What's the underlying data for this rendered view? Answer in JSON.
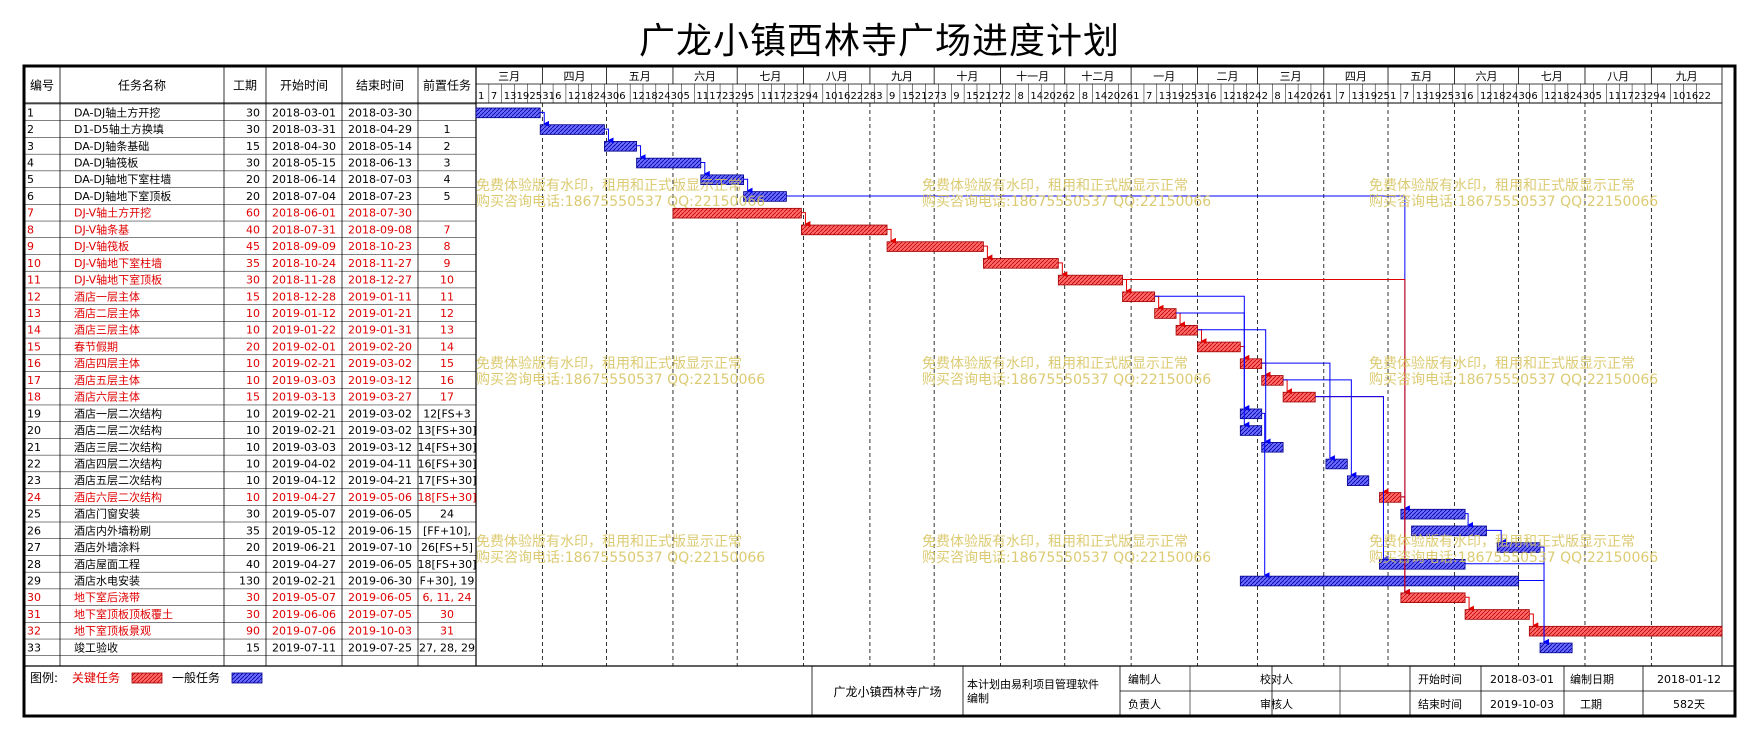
{
  "title": "广龙小镇西林寺广场进度计划",
  "headers": {
    "id": "编号",
    "name": "任务名称",
    "dur": "工期",
    "start": "开始时间",
    "end": "结束时间",
    "pred": "前置任务"
  },
  "colors": {
    "critical": "#ff4d4d",
    "general": "#4d4dff",
    "critical_text": "#e00000",
    "general_link": "#0000ff",
    "critical_link": "#e00000",
    "watermark": "#d6c25a"
  },
  "months": [
    "三月",
    "四月",
    "五月",
    "六月",
    "七月",
    "八月",
    "九月",
    "十月",
    "十一月",
    "十二月",
    "一月",
    "二月",
    "三月",
    "四月",
    "五月",
    "六月",
    "七月",
    "八月",
    "九月"
  ],
  "chart_data": {
    "type": "gantt",
    "title": "广龙小镇西林寺广场进度计划",
    "timeline_start": "2018-03-01",
    "timeline_end": "2019-10-03",
    "tasks": [
      {
        "id": "1",
        "name": "DA-DJ轴土方开挖",
        "dur": "30",
        "start": "2018-03-01",
        "end": "2018-03-30",
        "pred": "",
        "critical": false,
        "s": "2018-03-01",
        "e": "2018-03-30"
      },
      {
        "id": "2",
        "name": "D1-D5轴土方换填",
        "dur": "30",
        "start": "2018-03-31",
        "end": "2018-04-29",
        "pred": "1",
        "critical": false,
        "s": "2018-03-31",
        "e": "2018-04-29"
      },
      {
        "id": "3",
        "name": "DA-DJ轴条基础",
        "dur": "15",
        "start": "2018-04-30",
        "end": "2018-05-14",
        "pred": "2",
        "critical": false,
        "s": "2018-04-30",
        "e": "2018-05-14"
      },
      {
        "id": "4",
        "name": "DA-DJ轴筏板",
        "dur": "30",
        "start": "2018-05-15",
        "end": "2018-06-13",
        "pred": "3",
        "critical": false,
        "s": "2018-05-15",
        "e": "2018-06-13"
      },
      {
        "id": "5",
        "name": "DA-DJ轴地下室柱墙",
        "dur": "20",
        "start": "2018-06-14",
        "end": "2018-07-03",
        "pred": "4",
        "critical": false,
        "s": "2018-06-14",
        "e": "2018-07-03"
      },
      {
        "id": "6",
        "name": "DA-DJ轴地下室顶板",
        "dur": "20",
        "start": "2018-07-04",
        "end": "2018-07-23",
        "pred": "5",
        "critical": false,
        "s": "2018-07-04",
        "e": "2018-07-23"
      },
      {
        "id": "7",
        "name": "DJ-V轴土方开挖",
        "dur": "60",
        "start": "2018-06-01",
        "end": "2018-07-30",
        "pred": "",
        "critical": true,
        "s": "2018-06-01",
        "e": "2018-07-30"
      },
      {
        "id": "8",
        "name": "DJ-V轴条基",
        "dur": "40",
        "start": "2018-07-31",
        "end": "2018-09-08",
        "pred": "7",
        "critical": true,
        "s": "2018-07-31",
        "e": "2018-09-08"
      },
      {
        "id": "9",
        "name": "DJ-V轴筏板",
        "dur": "45",
        "start": "2018-09-09",
        "end": "2018-10-23",
        "pred": "8",
        "critical": true,
        "s": "2018-09-09",
        "e": "2018-10-23"
      },
      {
        "id": "10",
        "name": "DJ-V轴地下室柱墙",
        "dur": "35",
        "start": "2018-10-24",
        "end": "2018-11-27",
        "pred": "9",
        "critical": true,
        "s": "2018-10-24",
        "e": "2018-11-27"
      },
      {
        "id": "11",
        "name": "DJ-V轴地下室顶板",
        "dur": "30",
        "start": "2018-11-28",
        "end": "2018-12-27",
        "pred": "10",
        "critical": true,
        "s": "2018-11-28",
        "e": "2018-12-27"
      },
      {
        "id": "12",
        "name": "酒店一层主体",
        "dur": "15",
        "start": "2018-12-28",
        "end": "2019-01-11",
        "pred": "11",
        "critical": true,
        "s": "2018-12-28",
        "e": "2019-01-11"
      },
      {
        "id": "13",
        "name": "酒店二层主体",
        "dur": "10",
        "start": "2019-01-12",
        "end": "2019-01-21",
        "pred": "12",
        "critical": true,
        "s": "2019-01-12",
        "e": "2019-01-21"
      },
      {
        "id": "14",
        "name": "酒店三层主体",
        "dur": "10",
        "start": "2019-01-22",
        "end": "2019-01-31",
        "pred": "13",
        "critical": true,
        "s": "2019-01-22",
        "e": "2019-01-31"
      },
      {
        "id": "15",
        "name": "春节假期",
        "dur": "20",
        "start": "2019-02-01",
        "end": "2019-02-20",
        "pred": "14",
        "critical": true,
        "s": "2019-02-01",
        "e": "2019-02-20"
      },
      {
        "id": "16",
        "name": "酒店四层主体",
        "dur": "10",
        "start": "2019-02-21",
        "end": "2019-03-02",
        "pred": "15",
        "critical": true,
        "s": "2019-02-21",
        "e": "2019-03-02"
      },
      {
        "id": "17",
        "name": "酒店五层主体",
        "dur": "10",
        "start": "2019-03-03",
        "end": "2019-03-12",
        "pred": "16",
        "critical": true,
        "s": "2019-03-03",
        "e": "2019-03-12"
      },
      {
        "id": "18",
        "name": "酒店六层主体",
        "dur": "15",
        "start": "2019-03-13",
        "end": "2019-03-27",
        "pred": "17",
        "critical": true,
        "s": "2019-03-13",
        "e": "2019-03-27"
      },
      {
        "id": "19",
        "name": "酒店一层二次结构",
        "dur": "10",
        "start": "2019-02-21",
        "end": "2019-03-02",
        "pred": "12[FS+3",
        "critical": false,
        "s": "2019-02-21",
        "e": "2019-03-02"
      },
      {
        "id": "20",
        "name": "酒店二层二次结构",
        "dur": "10",
        "start": "2019-02-21",
        "end": "2019-03-02",
        "pred": "13[FS+30]",
        "critical": false,
        "s": "2019-02-21",
        "e": "2019-03-02"
      },
      {
        "id": "21",
        "name": "酒店三层二次结构",
        "dur": "10",
        "start": "2019-03-03",
        "end": "2019-03-12",
        "pred": "14[FS+30]",
        "critical": false,
        "s": "2019-03-03",
        "e": "2019-03-12"
      },
      {
        "id": "22",
        "name": "酒店四层二次结构",
        "dur": "10",
        "start": "2019-04-02",
        "end": "2019-04-11",
        "pred": "16[FS+30]",
        "critical": false,
        "s": "2019-04-02",
        "e": "2019-04-11"
      },
      {
        "id": "23",
        "name": "酒店五层二次结构",
        "dur": "10",
        "start": "2019-04-12",
        "end": "2019-04-21",
        "pred": "17[FS+30]",
        "critical": false,
        "s": "2019-04-12",
        "e": "2019-04-21"
      },
      {
        "id": "24",
        "name": "酒店六层二次结构",
        "dur": "10",
        "start": "2019-04-27",
        "end": "2019-05-06",
        "pred": "18[FS+30]",
        "critical": true,
        "s": "2019-04-27",
        "e": "2019-05-06"
      },
      {
        "id": "25",
        "name": "酒店门窗安装",
        "dur": "30",
        "start": "2019-05-07",
        "end": "2019-06-05",
        "pred": "24",
        "critical": false,
        "s": "2019-05-07",
        "e": "2019-06-05"
      },
      {
        "id": "26",
        "name": "酒店内外墙粉刷",
        "dur": "35",
        "start": "2019-05-12",
        "end": "2019-06-15",
        "pred": "[FF+10],",
        "critical": false,
        "s": "2019-05-12",
        "e": "2019-06-15"
      },
      {
        "id": "27",
        "name": "酒店外墙涂料",
        "dur": "20",
        "start": "2019-06-21",
        "end": "2019-07-10",
        "pred": "26[FS+5]",
        "critical": false,
        "s": "2019-06-21",
        "e": "2019-07-10"
      },
      {
        "id": "28",
        "name": "酒店屋面工程",
        "dur": "40",
        "start": "2019-04-27",
        "end": "2019-06-05",
        "pred": "18[FS+30]",
        "critical": false,
        "s": "2019-04-27",
        "e": "2019-06-05"
      },
      {
        "id": "29",
        "name": "酒店水电安装",
        "dur": "130",
        "start": "2019-02-21",
        "end": "2019-06-30",
        "pred": "F+30], 19",
        "critical": false,
        "s": "2019-02-21",
        "e": "2019-06-30"
      },
      {
        "id": "30",
        "name": "地下室后浇带",
        "dur": "30",
        "start": "2019-05-07",
        "end": "2019-06-05",
        "pred": "6, 11, 24",
        "critical": true,
        "s": "2019-05-07",
        "e": "2019-06-05"
      },
      {
        "id": "31",
        "name": "地下室顶板顶板覆土",
        "dur": "30",
        "start": "2019-06-06",
        "end": "2019-07-05",
        "pred": "30",
        "critical": true,
        "s": "2019-06-06",
        "e": "2019-07-05"
      },
      {
        "id": "32",
        "name": "地下室顶板景观",
        "dur": "90",
        "start": "2019-07-06",
        "end": "2019-10-03",
        "pred": "31",
        "critical": true,
        "s": "2019-07-06",
        "e": "2019-10-03"
      },
      {
        "id": "33",
        "name": "竣工验收",
        "dur": "15",
        "start": "2019-07-11",
        "end": "2019-07-25",
        "pred": "27, 28, 29",
        "critical": false,
        "s": "2019-07-11",
        "e": "2019-07-25"
      }
    ]
  },
  "day_ticks": [
    "1",
    "7",
    "13",
    "19",
    "25",
    "31",
    "6",
    "12",
    "18",
    "24",
    "30",
    "6",
    "12",
    "18",
    "24",
    "30",
    "5",
    "11",
    "17",
    "23",
    "29",
    "5",
    "11",
    "17",
    "23",
    "29",
    "4",
    "10",
    "16",
    "22",
    "28",
    "3",
    "9",
    "15",
    "21",
    "27",
    "3",
    "9",
    "15",
    "21",
    "27",
    "2",
    "8",
    "14",
    "20",
    "26",
    "2",
    "8",
    "14",
    "20",
    "26",
    "1",
    "7",
    "13",
    "19",
    "25",
    "31",
    "6",
    "12",
    "18",
    "24",
    "2",
    "8",
    "14",
    "20",
    "26",
    "1",
    "7",
    "13",
    "19",
    "25",
    "1",
    "7",
    "13",
    "19",
    "25",
    "31",
    "6",
    "12",
    "18",
    "24",
    "30",
    "6",
    "12",
    "18",
    "24",
    "30",
    "5",
    "11",
    "17",
    "23",
    "29",
    "4",
    "10",
    "16",
    "22"
  ],
  "watermark": {
    "line1": "免费体验版有水印，租用和正式版显示正常",
    "line2": "购买咨询电话:18675550537 QQ:22150066"
  },
  "legend": {
    "label": "图例:",
    "critical": "关键任务",
    "general": "一般任务"
  },
  "footer": {
    "project": "广龙小镇西林寺广场",
    "note": "本计划由易利项目管理软件编制",
    "compiler_label": "编制人",
    "compiler": "",
    "checker_label": "校对人",
    "checker": "",
    "owner_label": "负责人",
    "owner": "",
    "reviewer_label": "审核人",
    "reviewer": "",
    "start_label": "开始时间",
    "start": "2018-03-01",
    "date_label": "编制日期",
    "date": "2018-01-12",
    "end_label": "结束时间",
    "end": "2019-10-03",
    "dur_label": "工期",
    "dur": "582天"
  }
}
